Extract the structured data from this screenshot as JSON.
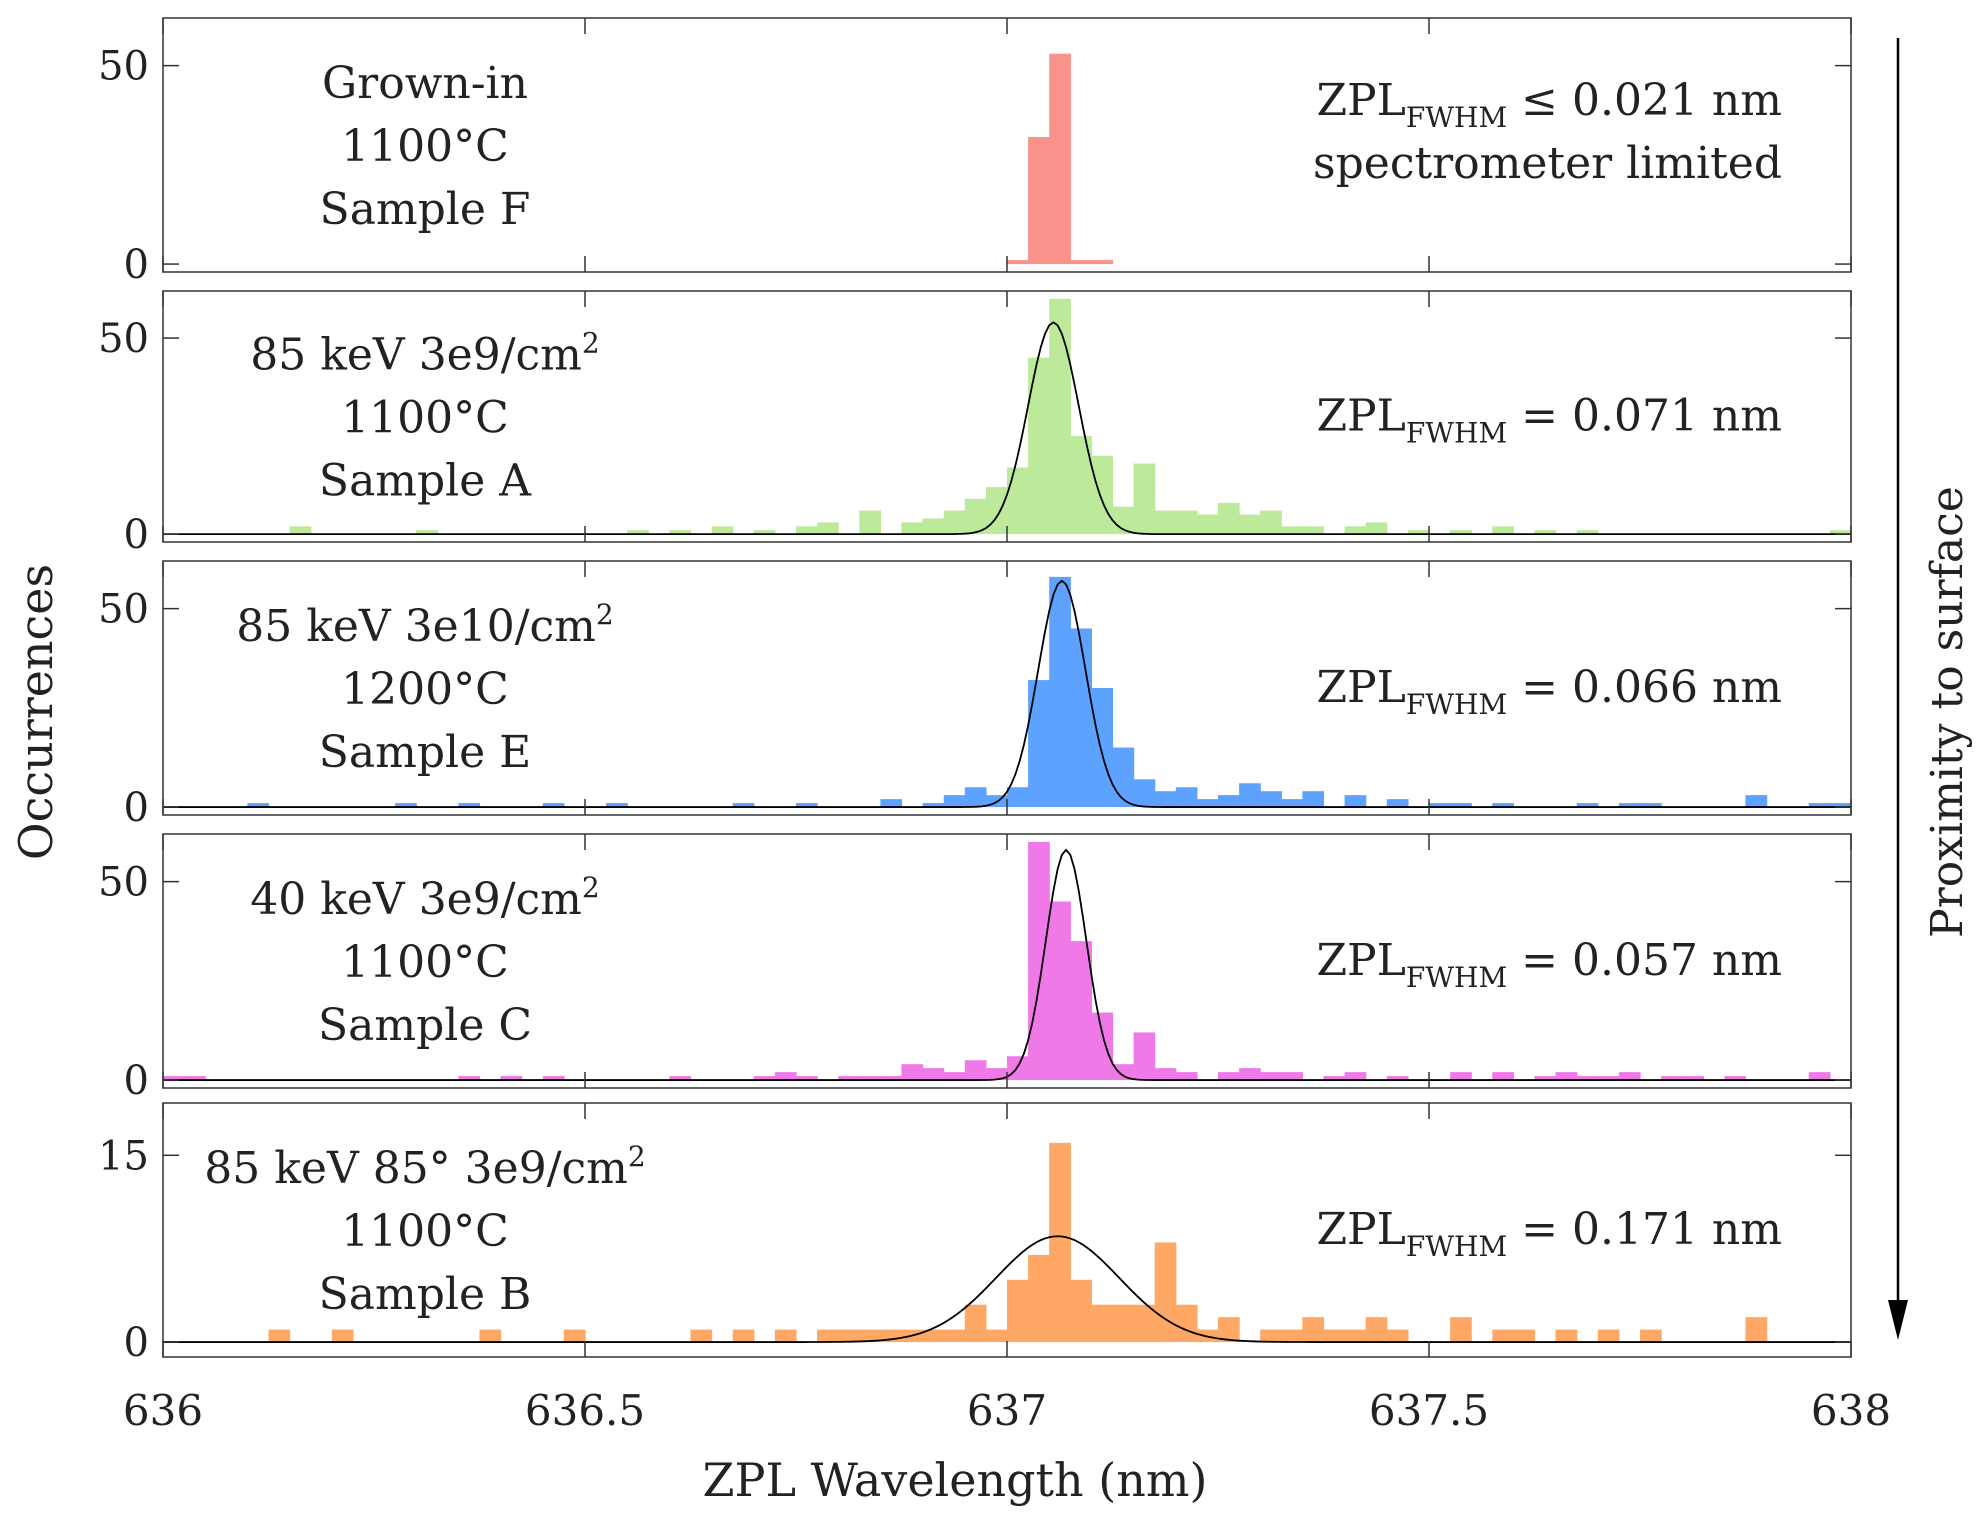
{
  "figure": {
    "y_axis_label": "Occurrences",
    "x_axis_label": "ZPL Wavelength (nm)",
    "arrow_label": "Proximity to surface"
  },
  "chart_data": {
    "type": "bar",
    "xlim": [
      636,
      638
    ],
    "bin_width": 0.025,
    "x_ticks": [
      636,
      636.5,
      637,
      637.5,
      638
    ],
    "x_tick_labels": [
      "636",
      "636.5",
      "637",
      "637.5",
      "638"
    ],
    "xlabel": "ZPL Wavelength (nm)",
    "ylabel": "Occurrences",
    "panels": [
      {
        "name": "panel-sample-f",
        "color": "#f8928a",
        "annotation": [
          "Grown-in",
          "1100°C",
          "Sample F"
        ],
        "label_lines": [
          {
            "text": "Grown-in"
          },
          {
            "text": "1100°C"
          },
          {
            "text": "Sample F"
          }
        ],
        "zpl": {
          "main": "ZPL",
          "sub": "FWHM",
          "rest": " ≤ 0.021 nm",
          "line2": "spectrometer limited"
        },
        "ylim": [
          -2,
          62
        ],
        "y_ticks": [
          0,
          50
        ],
        "y_tick_labels": [
          "0",
          "50"
        ],
        "bins": [
          [
            637.0,
            1
          ],
          [
            637.025,
            32
          ],
          [
            637.05,
            53
          ],
          [
            637.075,
            1
          ],
          [
            637.1,
            1
          ]
        ],
        "fit": null
      },
      {
        "name": "panel-sample-a",
        "color": "#bde99a",
        "annotation": [
          "85 keV 3e9/cm2",
          "1100°C",
          "Sample A"
        ],
        "label_lines": [
          {
            "text": "85 keV 3e9/cm",
            "sup": "2"
          },
          {
            "text": "1100°C"
          },
          {
            "text": "Sample A"
          }
        ],
        "zpl": {
          "main": "ZPL",
          "sub": "FWHM",
          "rest": " = 0.071 nm"
        },
        "ylim": [
          -2,
          62
        ],
        "y_ticks": [
          0,
          50
        ],
        "y_tick_labels": [
          "0",
          "50"
        ],
        "bins": [
          [
            636.15,
            2
          ],
          [
            636.3,
            1
          ],
          [
            636.55,
            1
          ],
          [
            636.6,
            1
          ],
          [
            636.65,
            2
          ],
          [
            636.7,
            1
          ],
          [
            636.75,
            2
          ],
          [
            636.775,
            3
          ],
          [
            636.825,
            6
          ],
          [
            636.875,
            3
          ],
          [
            636.9,
            4
          ],
          [
            636.925,
            6
          ],
          [
            636.95,
            9
          ],
          [
            636.975,
            12
          ],
          [
            637.0,
            17
          ],
          [
            637.025,
            45
          ],
          [
            637.05,
            60
          ],
          [
            637.075,
            25
          ],
          [
            637.1,
            20
          ],
          [
            637.125,
            7
          ],
          [
            637.15,
            18
          ],
          [
            637.175,
            6
          ],
          [
            637.2,
            6
          ],
          [
            637.225,
            5
          ],
          [
            637.25,
            8
          ],
          [
            637.275,
            5
          ],
          [
            637.3,
            6
          ],
          [
            637.325,
            2
          ],
          [
            637.35,
            2
          ],
          [
            637.4,
            2
          ],
          [
            637.425,
            3
          ],
          [
            637.475,
            1
          ],
          [
            637.525,
            1
          ],
          [
            637.575,
            2
          ],
          [
            637.625,
            1
          ],
          [
            637.675,
            1
          ],
          [
            637.975,
            1
          ]
        ],
        "fit": {
          "amplitude": 54,
          "center": 637.055,
          "sigma": 0.03
        }
      },
      {
        "name": "panel-sample-e",
        "color": "#5ea2ff",
        "annotation": [
          "85 keV 3e10/cm2",
          "1200°C",
          "Sample E"
        ],
        "label_lines": [
          {
            "text": "85 keV 3e10/cm",
            "sup": "2"
          },
          {
            "text": "1200°C"
          },
          {
            "text": "Sample E"
          }
        ],
        "zpl": {
          "main": "ZPL",
          "sub": "FWHM",
          "rest": " = 0.066 nm"
        },
        "ylim": [
          -2,
          62
        ],
        "y_ticks": [
          0,
          50
        ],
        "y_tick_labels": [
          "0",
          "50"
        ],
        "bins": [
          [
            636.1,
            1
          ],
          [
            636.275,
            1
          ],
          [
            636.35,
            1
          ],
          [
            636.45,
            1
          ],
          [
            636.525,
            1
          ],
          [
            636.675,
            1
          ],
          [
            636.75,
            1
          ],
          [
            636.85,
            2
          ],
          [
            636.9,
            1
          ],
          [
            636.925,
            3
          ],
          [
            636.95,
            5
          ],
          [
            636.975,
            3
          ],
          [
            637.0,
            5
          ],
          [
            637.025,
            32
          ],
          [
            637.05,
            58
          ],
          [
            637.075,
            45
          ],
          [
            637.1,
            30
          ],
          [
            637.125,
            15
          ],
          [
            637.15,
            7
          ],
          [
            637.175,
            4
          ],
          [
            637.2,
            5
          ],
          [
            637.225,
            2
          ],
          [
            637.25,
            3
          ],
          [
            637.275,
            6
          ],
          [
            637.3,
            4
          ],
          [
            637.325,
            2
          ],
          [
            637.35,
            4
          ],
          [
            637.4,
            3
          ],
          [
            637.45,
            2
          ],
          [
            637.5,
            1
          ],
          [
            637.525,
            1
          ],
          [
            637.575,
            1
          ],
          [
            637.675,
            1
          ],
          [
            637.725,
            1
          ],
          [
            637.75,
            1
          ],
          [
            637.875,
            3
          ],
          [
            637.95,
            1
          ],
          [
            637.975,
            1
          ]
        ],
        "fit": {
          "amplitude": 57,
          "center": 637.065,
          "sigma": 0.028
        }
      },
      {
        "name": "panel-sample-c",
        "color": "#ef79e7",
        "annotation": [
          "40 keV 3e9/cm2",
          "1100°C",
          "Sample C"
        ],
        "label_lines": [
          {
            "text": "40 keV 3e9/cm",
            "sup": "2"
          },
          {
            "text": "1100°C"
          },
          {
            "text": "Sample C"
          }
        ],
        "zpl": {
          "main": "ZPL",
          "sub": "FWHM",
          "rest": " = 0.057 nm"
        },
        "ylim": [
          -2,
          62
        ],
        "y_ticks": [
          0,
          50
        ],
        "y_tick_labels": [
          "0",
          "50"
        ],
        "bins": [
          [
            636.0,
            1
          ],
          [
            636.025,
            1
          ],
          [
            636.35,
            1
          ],
          [
            636.4,
            1
          ],
          [
            636.45,
            1
          ],
          [
            636.6,
            1
          ],
          [
            636.7,
            1
          ],
          [
            636.725,
            2
          ],
          [
            636.75,
            1
          ],
          [
            636.8,
            1
          ],
          [
            636.825,
            1
          ],
          [
            636.85,
            1
          ],
          [
            636.875,
            4
          ],
          [
            636.9,
            3
          ],
          [
            636.925,
            2
          ],
          [
            636.95,
            5
          ],
          [
            636.975,
            3
          ],
          [
            637.0,
            6
          ],
          [
            637.025,
            60
          ],
          [
            637.05,
            45
          ],
          [
            637.075,
            35
          ],
          [
            637.1,
            17
          ],
          [
            637.125,
            4
          ],
          [
            637.15,
            12
          ],
          [
            637.175,
            3
          ],
          [
            637.2,
            2
          ],
          [
            637.25,
            2
          ],
          [
            637.275,
            3
          ],
          [
            637.3,
            2
          ],
          [
            637.325,
            2
          ],
          [
            637.375,
            1
          ],
          [
            637.4,
            2
          ],
          [
            637.45,
            1
          ],
          [
            637.525,
            2
          ],
          [
            637.575,
            2
          ],
          [
            637.625,
            1
          ],
          [
            637.65,
            2
          ],
          [
            637.675,
            1
          ],
          [
            637.7,
            1
          ],
          [
            637.725,
            2
          ],
          [
            637.775,
            1
          ],
          [
            637.8,
            1
          ],
          [
            637.85,
            1
          ],
          [
            637.95,
            2
          ]
        ],
        "fit": {
          "amplitude": 58,
          "center": 637.07,
          "sigma": 0.024
        }
      },
      {
        "name": "panel-sample-b",
        "color": "#ffa764",
        "annotation": [
          "85 keV 85° 3e9/cm2",
          "1100°C",
          "Sample B"
        ],
        "label_lines": [
          {
            "text": "85 keV 85° 3e9/cm",
            "sup": "2"
          },
          {
            "text": "1100°C"
          },
          {
            "text": "Sample B"
          }
        ],
        "zpl": {
          "main": "ZPL",
          "sub": "FWHM",
          "rest": " = 0.171 nm"
        },
        "ylim": [
          -1.2,
          19.2
        ],
        "y_ticks": [
          0,
          15
        ],
        "y_tick_labels": [
          "0",
          "15"
        ],
        "bins": [
          [
            636.125,
            1
          ],
          [
            636.2,
            1
          ],
          [
            636.375,
            1
          ],
          [
            636.475,
            1
          ],
          [
            636.625,
            1
          ],
          [
            636.675,
            1
          ],
          [
            636.725,
            1
          ],
          [
            636.775,
            1
          ],
          [
            636.8,
            1
          ],
          [
            636.825,
            1
          ],
          [
            636.85,
            1
          ],
          [
            636.875,
            1
          ],
          [
            636.9,
            1
          ],
          [
            636.925,
            1
          ],
          [
            636.95,
            3
          ],
          [
            636.975,
            1
          ],
          [
            637.0,
            5
          ],
          [
            637.025,
            7
          ],
          [
            637.05,
            16
          ],
          [
            637.075,
            5
          ],
          [
            637.1,
            3
          ],
          [
            637.125,
            3
          ],
          [
            637.15,
            3
          ],
          [
            637.175,
            8
          ],
          [
            637.2,
            3
          ],
          [
            637.225,
            1
          ],
          [
            637.25,
            2
          ],
          [
            637.3,
            1
          ],
          [
            637.325,
            1
          ],
          [
            637.35,
            2
          ],
          [
            637.375,
            1
          ],
          [
            637.4,
            1
          ],
          [
            637.425,
            2
          ],
          [
            637.45,
            1
          ],
          [
            637.525,
            2
          ],
          [
            637.575,
            1
          ],
          [
            637.6,
            1
          ],
          [
            637.65,
            1
          ],
          [
            637.7,
            1
          ],
          [
            637.75,
            1
          ],
          [
            637.875,
            2
          ]
        ],
        "fit": {
          "amplitude": 8.5,
          "center": 637.06,
          "sigma": 0.073
        }
      }
    ]
  }
}
